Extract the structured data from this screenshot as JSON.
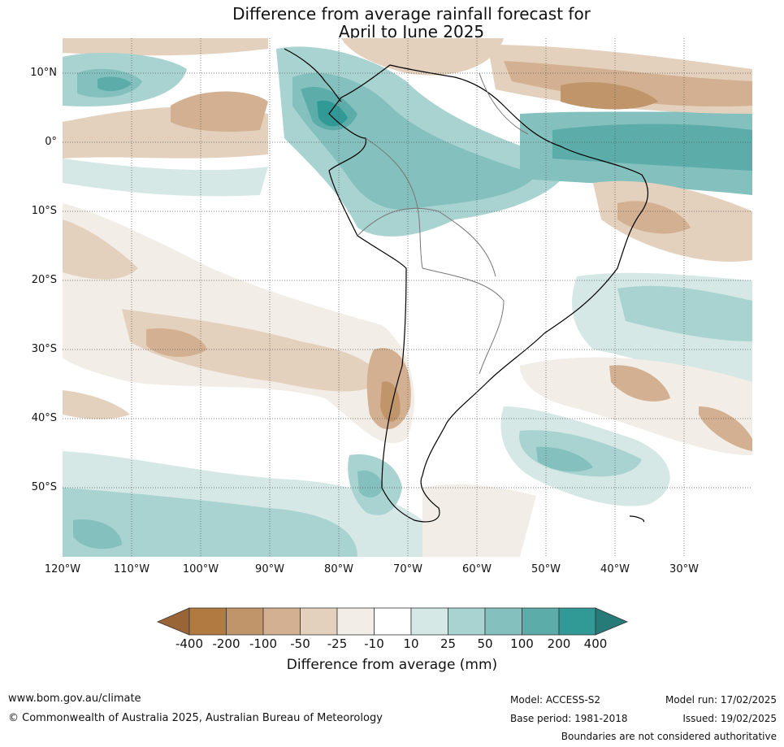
{
  "title_line1": "Difference from average rainfall forecast for",
  "title_line2": "April to June 2025",
  "latitude_labels": [
    "10°N",
    "0°",
    "10°S",
    "20°S",
    "30°S",
    "40°S",
    "50°S"
  ],
  "longitude_labels": [
    "120°W",
    "110°W",
    "100°W",
    "90°W",
    "80°W",
    "70°W",
    "60°W",
    "50°W",
    "40°W",
    "30°W"
  ],
  "colorbar": {
    "label": "Difference from average (mm)",
    "ticks": [
      "-400",
      "-200",
      "-100",
      "-50",
      "-25",
      "-10",
      "10",
      "25",
      "50",
      "100",
      "200",
      "400"
    ],
    "colors": [
      "#9a6536",
      "#b07a41",
      "#c0956a",
      "#d2b091",
      "#e4d1bd",
      "#f2ede6",
      "#ffffff",
      "#d5e8e6",
      "#a8d3d0",
      "#84c0bd",
      "#5cadaa",
      "#319a97",
      "#267a78"
    ]
  },
  "footer": {
    "url": "www.bom.gov.au/climate",
    "copyright": "© Commonwealth of Australia 2025, Australian Bureau of Meteorology",
    "model": "Model: ACCESS-S2",
    "base_period": "Base period: 1981-2018",
    "model_run": "Model run: 17/02/2025",
    "issued": "Issued: 19/02/2025",
    "disclaimer": "Boundaries are not considered authoritative"
  }
}
